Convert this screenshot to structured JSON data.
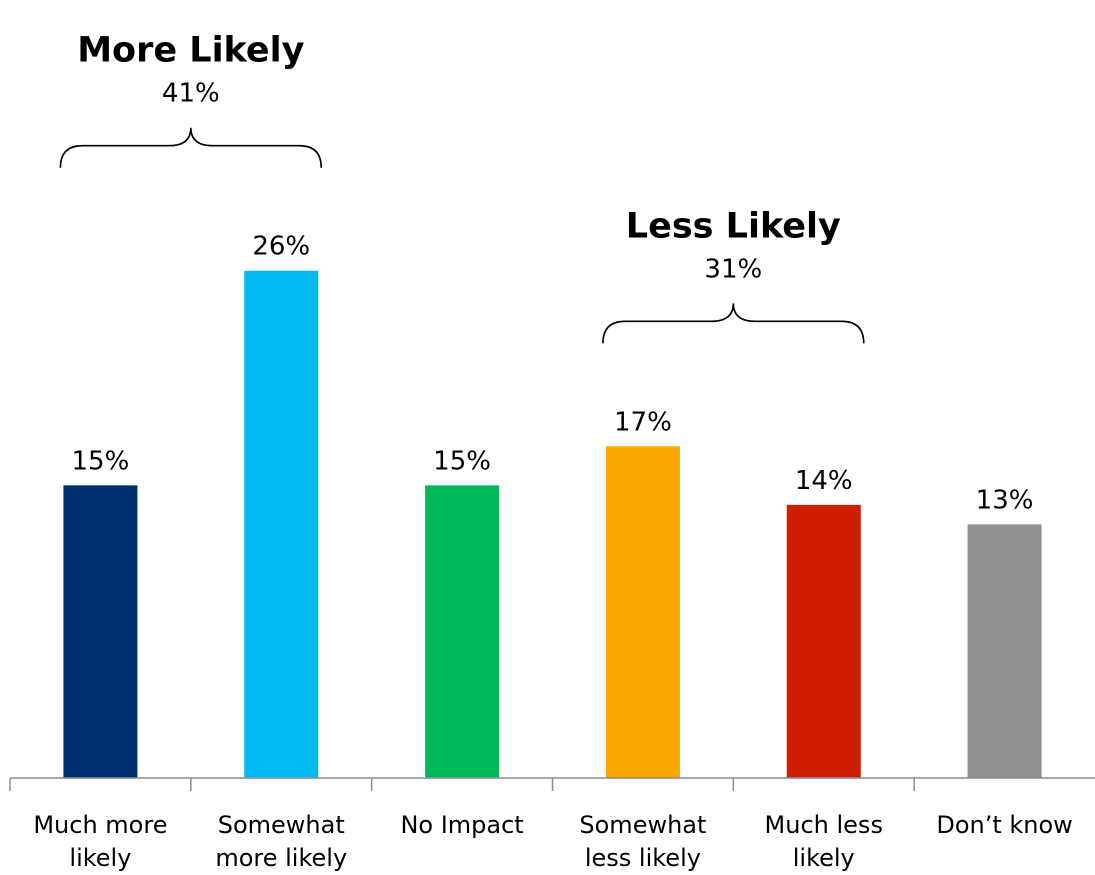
{
  "chart_data": {
    "type": "bar",
    "categories": [
      [
        "Much more",
        "likely"
      ],
      [
        "Somewhat",
        "more likely"
      ],
      [
        "No Impact"
      ],
      [
        "Somewhat",
        "less likely"
      ],
      [
        "Much less",
        "likely"
      ],
      [
        "Don’t know"
      ]
    ],
    "values": [
      15,
      26,
      15,
      17,
      14,
      13
    ],
    "value_labels": [
      "15%",
      "26%",
      "15%",
      "17%",
      "14%",
      "13%"
    ],
    "colors": [
      "#003070",
      "#00B9F0",
      "#00B85C",
      "#FBA500",
      "#CF1E00",
      "#909090"
    ],
    "groups": [
      {
        "title": "More Likely",
        "value": "41%",
        "from": 0,
        "to": 1
      },
      {
        "title": "Less Likely",
        "value": "31%",
        "from": 3,
        "to": 4
      }
    ],
    "ylim": [
      0,
      28.6
    ],
    "grid": false,
    "legend": "none"
  }
}
